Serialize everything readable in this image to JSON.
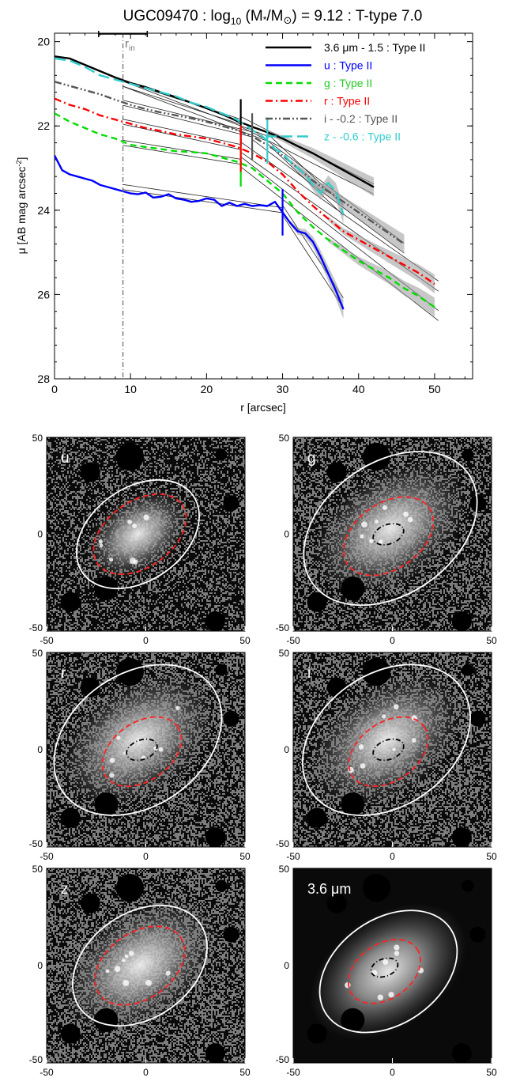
{
  "chart_data": [
    {
      "type": "line",
      "title_main": "UGC09470 : log",
      "title_sub": "10",
      "title_rest": " (M",
      "title_star": "*",
      "title_slash": "/M",
      "title_sun": "⊙",
      "title_end": ") = 9.12 : T-type 7.0",
      "xlabel": "r [arcsec]",
      "ylabel": "μ [AB mag arcsec",
      "ylabel_exp": "-2",
      "ylabel_close": "]",
      "xlim": [
        0,
        55
      ],
      "ylim": [
        28,
        19.8
      ],
      "x_ticks": [
        0,
        10,
        20,
        30,
        40,
        50
      ],
      "y_ticks": [
        20,
        22,
        24,
        26,
        28
      ],
      "rin_label": "r",
      "rin_sub": "in",
      "rin_x": 9,
      "rin_error_bar": [
        5.8,
        12.2
      ],
      "legend_position": "top-right",
      "legend": [
        {
          "label": "3.6 μm - 1.5 : Type II",
          "color": "#000000",
          "dash": "solid"
        },
        {
          "label": "u : Type II",
          "color": "#0000ff",
          "dash": "solid"
        },
        {
          "label": "g : Type II",
          "color": "#00dd00",
          "dash": "dashed"
        },
        {
          "label": "r : Type II",
          "color": "#ff0000",
          "dash": "dashdot"
        },
        {
          "label": "i - -0.2 : Type II",
          "color": "#555555",
          "dash": "dashdotdot"
        },
        {
          "label": "z - -0.6 : Type II",
          "color": "#33cccc",
          "dash": "longdash"
        }
      ],
      "series": [
        {
          "name": "3.6 μm - 1.5",
          "color": "#000000",
          "dash": "solid",
          "x": [
            0,
            2,
            4,
            6,
            8,
            10,
            12,
            14,
            16,
            18,
            20,
            22,
            24,
            26,
            28,
            30,
            32,
            34,
            36,
            38,
            40,
            42
          ],
          "y": [
            20.35,
            20.4,
            20.55,
            20.7,
            20.85,
            20.98,
            21.08,
            21.2,
            21.32,
            21.45,
            21.58,
            21.72,
            21.88,
            22.02,
            22.15,
            22.3,
            22.48,
            22.65,
            22.85,
            23.05,
            23.25,
            23.45
          ],
          "breaks": [
            24.5
          ],
          "fit": [
            [
              9,
              21.0
            ],
            [
              24.5,
              21.9
            ],
            [
              42,
              23.5
            ]
          ]
        },
        {
          "name": "u",
          "color": "#0000ff",
          "dash": "solid",
          "x": [
            0,
            1,
            2,
            3,
            4,
            5,
            6,
            7,
            8,
            9,
            10,
            11,
            12,
            13,
            14,
            15,
            16,
            17,
            18,
            19,
            20,
            21,
            22,
            23,
            24,
            25,
            26,
            27,
            28,
            29,
            30,
            31,
            32,
            33,
            34,
            35,
            36,
            37,
            38
          ],
          "y": [
            22.7,
            23.05,
            23.15,
            23.2,
            23.25,
            23.3,
            23.4,
            23.45,
            23.5,
            23.55,
            23.6,
            23.62,
            23.58,
            23.7,
            23.68,
            23.62,
            23.72,
            23.75,
            23.8,
            23.78,
            23.72,
            23.75,
            23.9,
            23.82,
            23.9,
            23.85,
            23.9,
            23.88,
            23.9,
            23.8,
            24.05,
            24.3,
            24.5,
            24.55,
            24.75,
            25.1,
            25.5,
            25.9,
            26.35
          ],
          "breaks": [
            30.0
          ],
          "fit": [
            [
              9,
              23.45
            ],
            [
              30,
              24.0
            ],
            [
              38,
              26.2
            ]
          ]
        },
        {
          "name": "g",
          "color": "#00dd00",
          "dash": "dashed",
          "x": [
            0,
            2,
            4,
            6,
            8,
            10,
            12,
            14,
            16,
            18,
            20,
            22,
            24,
            26,
            28,
            30,
            32,
            34,
            36,
            38,
            40,
            42,
            44,
            46,
            48,
            50
          ],
          "y": [
            21.7,
            21.9,
            22.05,
            22.2,
            22.3,
            22.45,
            22.5,
            22.55,
            22.6,
            22.62,
            22.65,
            22.75,
            22.85,
            23.0,
            23.3,
            23.6,
            24.05,
            24.4,
            24.7,
            24.95,
            25.2,
            25.4,
            25.6,
            25.85,
            26.05,
            26.3
          ],
          "breaks": [
            24.5
          ],
          "fit": [
            [
              9,
              22.4
            ],
            [
              24.5,
              22.85
            ],
            [
              50.5,
              26.5
            ]
          ]
        },
        {
          "name": "r",
          "color": "#ff0000",
          "dash": "dashdot",
          "x": [
            0,
            2,
            4,
            6,
            8,
            10,
            12,
            14,
            16,
            18,
            20,
            22,
            24,
            26,
            28,
            30,
            32,
            34,
            36,
            38,
            40,
            42,
            44,
            46,
            48,
            50
          ],
          "y": [
            21.35,
            21.5,
            21.6,
            21.75,
            21.85,
            21.95,
            22.05,
            22.12,
            22.2,
            22.25,
            22.3,
            22.4,
            22.5,
            22.65,
            22.85,
            23.15,
            23.55,
            23.9,
            24.2,
            24.5,
            24.7,
            24.9,
            25.1,
            25.3,
            25.5,
            25.75
          ],
          "breaks": [
            24.5
          ],
          "fit": [
            [
              9,
              21.9
            ],
            [
              24.5,
              22.5
            ],
            [
              50.5,
              25.8
            ]
          ]
        },
        {
          "name": "i - -0.2",
          "color": "#555555",
          "dash": "dashdotdot",
          "x": [
            0,
            2,
            4,
            6,
            8,
            10,
            12,
            14,
            16,
            18,
            20,
            22,
            24,
            26,
            28,
            30,
            32,
            34,
            36,
            38,
            40,
            42,
            44,
            46
          ],
          "y": [
            20.95,
            21.05,
            21.15,
            21.25,
            21.38,
            21.5,
            21.6,
            21.68,
            21.75,
            21.82,
            21.9,
            22.0,
            22.1,
            22.25,
            22.45,
            22.7,
            23.0,
            23.3,
            23.55,
            23.8,
            24.05,
            24.3,
            24.55,
            24.8
          ],
          "breaks": [
            26.0
          ],
          "fit": [
            [
              9,
              21.45
            ],
            [
              26,
              22.2
            ],
            [
              46,
              24.9
            ]
          ]
        },
        {
          "name": "z - -0.6",
          "color": "#33cccc",
          "dash": "longdash",
          "x": [
            0,
            2,
            4,
            6,
            8,
            10,
            12,
            14,
            16,
            18,
            20,
            22,
            24,
            26,
            27,
            28,
            29,
            30,
            31,
            32,
            33,
            34,
            35,
            36,
            37,
            38
          ],
          "y": [
            20.4,
            20.45,
            20.6,
            20.8,
            20.9,
            21.0,
            21.1,
            21.2,
            21.3,
            21.45,
            21.55,
            21.7,
            21.85,
            22.1,
            22.2,
            22.35,
            22.55,
            22.65,
            22.85,
            23.0,
            23.15,
            23.4,
            23.6,
            23.35,
            23.55,
            24.1
          ],
          "breaks": [
            28.0
          ],
          "fit": [
            [
              9,
              21.0
            ],
            [
              28,
              22.3
            ],
            [
              38,
              24.0
            ]
          ]
        }
      ]
    },
    {
      "type": "heatmap",
      "panels": [
        {
          "label": "u"
        },
        {
          "label": "g"
        },
        {
          "label": "r"
        },
        {
          "label": "i"
        },
        {
          "label": "z"
        },
        {
          "label": "3.6 μm"
        }
      ],
      "x_ticks": [
        -50,
        0,
        50
      ],
      "y_ticks": [
        50,
        0,
        -50
      ],
      "xlim": [
        -50,
        50
      ],
      "ylim": [
        -50,
        50
      ]
    }
  ]
}
